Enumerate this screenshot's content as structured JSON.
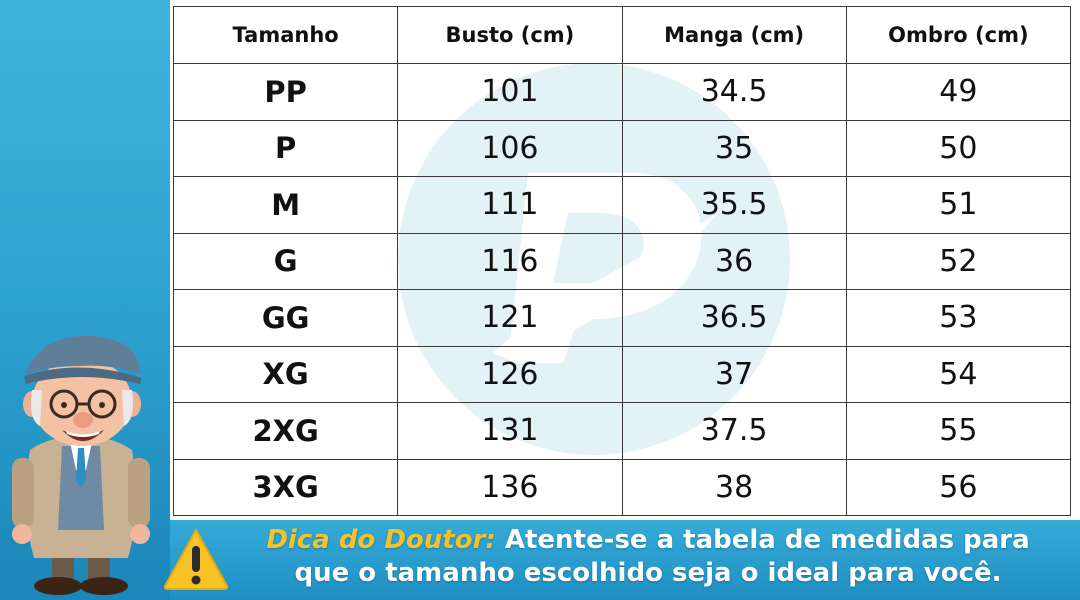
{
  "table": {
    "headers": [
      "Tamanho",
      "Busto (cm)",
      "Manga (cm)",
      "Ombro (cm)"
    ],
    "rows": [
      [
        "PP",
        "101",
        "34.5",
        "49"
      ],
      [
        "P",
        "106",
        "35",
        "50"
      ],
      [
        "M",
        "111",
        "35.5",
        "51"
      ],
      [
        "G",
        "116",
        "36",
        "52"
      ],
      [
        "GG",
        "121",
        "36.5",
        "53"
      ],
      [
        "XG",
        "126",
        "37",
        "54"
      ],
      [
        "2XG",
        "131",
        "37.5",
        "55"
      ],
      [
        "3XG",
        "136",
        "38",
        "56"
      ]
    ]
  },
  "tip": {
    "label": "Dica do Doutor:",
    "line1": "Atente-se a tabela de medidas para",
    "line2": "que o tamanho escolhido seja o ideal para você."
  },
  "colors": {
    "background": "#2ea3cf",
    "tip_label": "#f6c22b",
    "watermark": "#dff0f6"
  },
  "icons": {
    "warning": "warning-triangle-icon",
    "watermark": "brand-logo-watermark",
    "mascot": "doctor-mascot"
  }
}
